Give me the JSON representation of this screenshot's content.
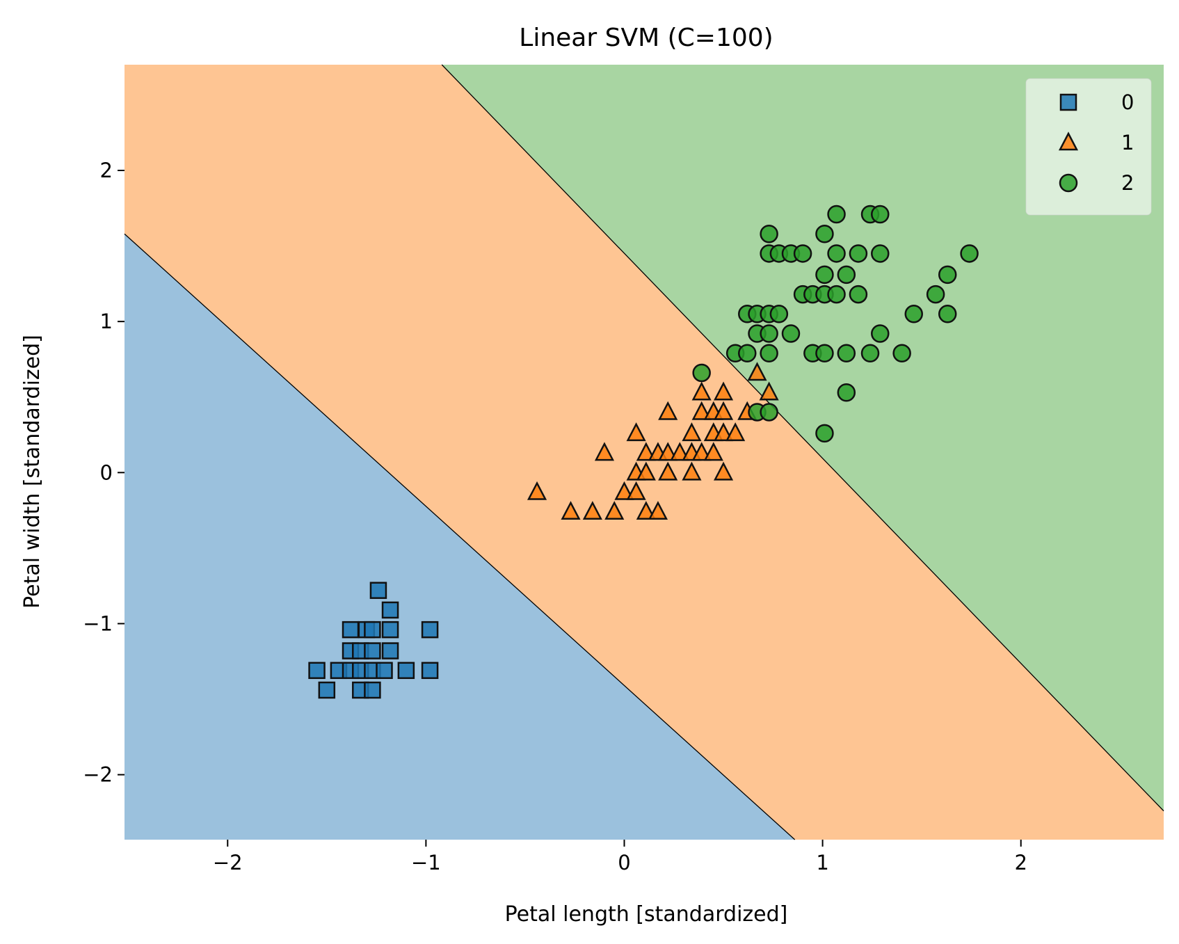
{
  "chart_data": {
    "type": "scatter",
    "title": "Linear SVM (C=100)",
    "xlabel": "Petal length [standardized]",
    "ylabel": "Petal width [standardized]",
    "xlim": [
      -2.52,
      2.72
    ],
    "ylim": [
      -2.43,
      2.7
    ],
    "xticks": [
      -2,
      -1,
      0,
      1,
      2
    ],
    "yticks": [
      -2,
      -1,
      0,
      1,
      2
    ],
    "xtick_labels": [
      "−2",
      "−1",
      "0",
      "1",
      "2"
    ],
    "ytick_labels": [
      "−2",
      "−1",
      "0",
      "1",
      "2"
    ],
    "grid": false,
    "legend_position": "top-right",
    "decision_regions": {
      "colors": {
        "0": "#9bc1dd",
        "1": "#fec593",
        "2": "#a8d5a2"
      },
      "boundary_0_1": [
        [
          -2.52,
          1.58
        ],
        [
          0.86,
          -2.43
        ]
      ],
      "boundary_1_2": [
        [
          -0.92,
          2.7
        ],
        [
          2.72,
          -2.24
        ]
      ]
    },
    "series": [
      {
        "name": "0",
        "marker": "square",
        "color": "#1f77b4",
        "points": [
          [
            -1.24,
            -0.78
          ],
          [
            -1.18,
            -0.91
          ],
          [
            -1.38,
            -1.04
          ],
          [
            -1.3,
            -1.04
          ],
          [
            -1.27,
            -1.04
          ],
          [
            -1.18,
            -1.04
          ],
          [
            -0.98,
            -1.04
          ],
          [
            -1.38,
            -1.18
          ],
          [
            -1.33,
            -1.18
          ],
          [
            -1.27,
            -1.18
          ],
          [
            -1.18,
            -1.18
          ],
          [
            -1.55,
            -1.31
          ],
          [
            -1.44,
            -1.31
          ],
          [
            -1.38,
            -1.31
          ],
          [
            -1.33,
            -1.31
          ],
          [
            -1.27,
            -1.31
          ],
          [
            -1.21,
            -1.31
          ],
          [
            -1.1,
            -1.31
          ],
          [
            -0.98,
            -1.31
          ],
          [
            -1.5,
            -1.44
          ],
          [
            -1.33,
            -1.44
          ],
          [
            -1.27,
            -1.44
          ]
        ]
      },
      {
        "name": "1",
        "marker": "triangle",
        "color": "#ff7f0e",
        "points": [
          [
            -0.44,
            -0.13
          ],
          [
            -0.27,
            -0.26
          ],
          [
            -0.16,
            -0.26
          ],
          [
            -0.05,
            -0.26
          ],
          [
            0.11,
            -0.26
          ],
          [
            0.17,
            -0.26
          ],
          [
            0.0,
            -0.13
          ],
          [
            0.06,
            -0.13
          ],
          [
            -0.1,
            0.13
          ],
          [
            0.06,
            0.0
          ],
          [
            0.11,
            0.0
          ],
          [
            0.22,
            0.0
          ],
          [
            0.34,
            0.0
          ],
          [
            0.5,
            0.0
          ],
          [
            0.11,
            0.13
          ],
          [
            0.17,
            0.13
          ],
          [
            0.22,
            0.13
          ],
          [
            0.28,
            0.13
          ],
          [
            0.34,
            0.13
          ],
          [
            0.39,
            0.13
          ],
          [
            0.45,
            0.13
          ],
          [
            0.06,
            0.26
          ],
          [
            0.34,
            0.26
          ],
          [
            0.45,
            0.26
          ],
          [
            0.5,
            0.26
          ],
          [
            0.56,
            0.26
          ],
          [
            0.22,
            0.4
          ],
          [
            0.39,
            0.4
          ],
          [
            0.45,
            0.4
          ],
          [
            0.5,
            0.4
          ],
          [
            0.62,
            0.4
          ],
          [
            0.39,
            0.53
          ],
          [
            0.5,
            0.53
          ],
          [
            0.73,
            0.53
          ],
          [
            0.67,
            0.66
          ]
        ]
      },
      {
        "name": "2",
        "marker": "circle",
        "color": "#2ca02c",
        "points": [
          [
            0.39,
            0.66
          ],
          [
            0.67,
            0.4
          ],
          [
            0.73,
            0.4
          ],
          [
            1.01,
            0.26
          ],
          [
            1.12,
            0.53
          ],
          [
            0.56,
            0.79
          ],
          [
            0.62,
            0.79
          ],
          [
            0.73,
            0.79
          ],
          [
            0.95,
            0.79
          ],
          [
            1.01,
            0.79
          ],
          [
            1.12,
            0.79
          ],
          [
            1.24,
            0.79
          ],
          [
            1.4,
            0.79
          ],
          [
            0.67,
            0.92
          ],
          [
            0.73,
            0.92
          ],
          [
            0.84,
            0.92
          ],
          [
            1.29,
            0.92
          ],
          [
            0.62,
            1.05
          ],
          [
            0.67,
            1.05
          ],
          [
            0.73,
            1.05
          ],
          [
            0.78,
            1.05
          ],
          [
            1.46,
            1.05
          ],
          [
            1.63,
            1.05
          ],
          [
            0.9,
            1.18
          ],
          [
            0.95,
            1.18
          ],
          [
            1.01,
            1.18
          ],
          [
            1.07,
            1.18
          ],
          [
            1.18,
            1.18
          ],
          [
            1.57,
            1.18
          ],
          [
            1.01,
            1.31
          ],
          [
            1.12,
            1.31
          ],
          [
            1.63,
            1.31
          ],
          [
            0.73,
            1.45
          ],
          [
            0.78,
            1.45
          ],
          [
            0.84,
            1.45
          ],
          [
            0.9,
            1.45
          ],
          [
            1.07,
            1.45
          ],
          [
            1.18,
            1.45
          ],
          [
            1.29,
            1.45
          ],
          [
            1.74,
            1.45
          ],
          [
            0.73,
            1.58
          ],
          [
            1.01,
            1.58
          ],
          [
            1.07,
            1.71
          ],
          [
            1.24,
            1.71
          ],
          [
            1.29,
            1.71
          ]
        ]
      }
    ]
  }
}
